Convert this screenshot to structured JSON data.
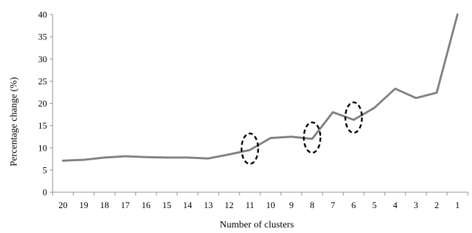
{
  "chart_data": {
    "type": "line",
    "title": "",
    "xlabel": "Number of clusters",
    "ylabel": "Percentage change (%)",
    "categories": [
      "20",
      "19",
      "18",
      "17",
      "16",
      "15",
      "14",
      "13",
      "12",
      "11",
      "10",
      "9",
      "8",
      "7",
      "6",
      "5",
      "4",
      "3",
      "2",
      "1"
    ],
    "series": [
      {
        "values": [
          7.1,
          7.3,
          7.8,
          8.1,
          7.9,
          7.8,
          7.8,
          7.6,
          8.5,
          9.5,
          12.2,
          12.5,
          12.0,
          18.0,
          16.3,
          19.0,
          23.3,
          21.2,
          22.4,
          40.0
        ],
        "color": "#808080"
      }
    ],
    "ylim": [
      0,
      40
    ],
    "yticks": [
      "0",
      "5",
      "10",
      "15",
      "20",
      "25",
      "30",
      "35",
      "40"
    ],
    "grid": false,
    "annotations": [
      {
        "shape": "dashed-ellipse",
        "category": "11",
        "y": 9.8
      },
      {
        "shape": "dashed-ellipse",
        "category": "8",
        "y": 12.3
      },
      {
        "shape": "dashed-ellipse",
        "category": "6",
        "y": 16.8
      }
    ]
  }
}
